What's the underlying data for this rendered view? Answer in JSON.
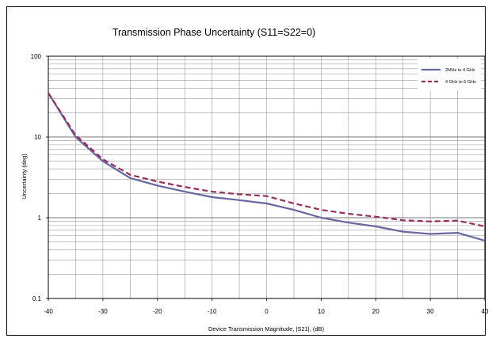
{
  "chart_data": {
    "type": "line",
    "title": "Transmission Phase Uncertainty (S11=S22=0)",
    "xlabel": "Device Transmission Magnitude, |S21|, (dB)",
    "ylabel": "Uncertainty (deg)",
    "xlim": [
      -40,
      40
    ],
    "ylim": [
      0.1,
      100
    ],
    "y_scale": "log",
    "grid": true,
    "legend_position": "top-right",
    "x_ticks": [
      "-40",
      "-30",
      "-20",
      "-10",
      "0",
      "10",
      "20",
      "30",
      "40"
    ],
    "y_ticks": [
      "0.1",
      "1",
      "10",
      "100"
    ],
    "x": [
      -40,
      -35,
      -30,
      -25,
      -20,
      -15,
      -10,
      -5,
      0,
      5,
      10,
      15,
      20,
      25,
      30,
      35,
      40
    ],
    "series": [
      {
        "name": "2MHz to 4 GHz",
        "color": "#6666a0",
        "dash": "solid",
        "values": [
          35,
          10,
          5.0,
          3.1,
          2.5,
          2.1,
          1.8,
          1.65,
          1.5,
          1.25,
          1.0,
          0.87,
          0.78,
          0.67,
          0.63,
          0.65,
          0.52
        ]
      },
      {
        "name": "4 GHz to 6 GHz",
        "color": "#9b2d5c",
        "dash": "dashed",
        "values": [
          35,
          10.5,
          5.3,
          3.4,
          2.8,
          2.4,
          2.1,
          1.95,
          1.85,
          1.5,
          1.25,
          1.12,
          1.03,
          0.93,
          0.9,
          0.92,
          0.78
        ]
      }
    ]
  }
}
